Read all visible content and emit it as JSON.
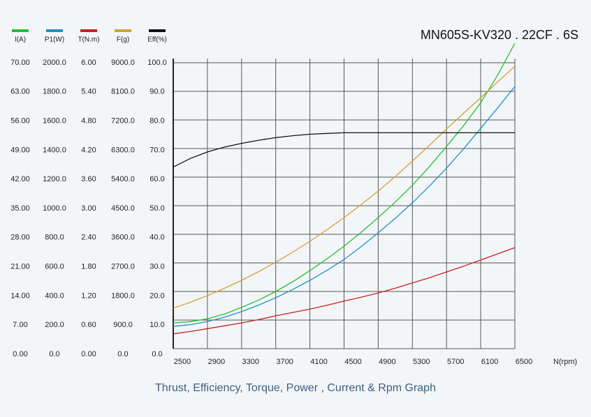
{
  "chart_data": {
    "type": "line",
    "title": "MN605S-KV320 . 22CF . 6S",
    "subtitle": "Thrust, Efficiency, Torque, Power , Current & Rpm Graph",
    "x_label": "N(rpm)",
    "grid": true,
    "x": [
      2500,
      2700,
      2900,
      3100,
      3300,
      3500,
      3700,
      3900,
      4100,
      4300,
      4500,
      4700,
      4900,
      5100,
      5300,
      5500,
      5700,
      5900,
      6100,
      6300,
      6500
    ],
    "xlim": [
      2500,
      6500
    ],
    "xticks": [
      2500,
      2900,
      3300,
      3700,
      4100,
      4500,
      4900,
      5300,
      5700,
      6100,
      6500
    ],
    "series": [
      {
        "name": "I(A)",
        "color": "#22c02c",
        "ylim": [
          0,
          70
        ],
        "yticks": [
          {
            "value": 0,
            "label": "0.00"
          },
          {
            "value": 7,
            "label": "7.00"
          },
          {
            "value": 14,
            "label": "14.00"
          },
          {
            "value": 21,
            "label": "21.00"
          },
          {
            "value": 28,
            "label": "28.00"
          },
          {
            "value": 35,
            "label": "35.00"
          },
          {
            "value": 42,
            "label": "42.00"
          },
          {
            "value": 49,
            "label": "49.00"
          },
          {
            "value": 56,
            "label": "56.00"
          },
          {
            "value": 63,
            "label": "63.00"
          },
          {
            "value": 70,
            "label": "70.00"
          }
        ],
        "values": [
          6.3,
          6.6,
          7.3,
          8.5,
          10.1,
          11.9,
          14.0,
          16.4,
          19.1,
          22.0,
          25.1,
          28.5,
          32.1,
          35.9,
          40.0,
          44.6,
          49.5,
          54.6,
          60.2,
          67.0,
          74.8
        ]
      },
      {
        "name": "P1(W)",
        "color": "#1e90c8",
        "ylim": [
          0,
          2000
        ],
        "yticks": [
          {
            "value": 0,
            "label": "0.0"
          },
          {
            "value": 200,
            "label": "200.0"
          },
          {
            "value": 400,
            "label": "400.0"
          },
          {
            "value": 600,
            "label": "600.0"
          },
          {
            "value": 800,
            "label": "800.0"
          },
          {
            "value": 1000,
            "label": "1000.0"
          },
          {
            "value": 1200,
            "label": "1200.0"
          },
          {
            "value": 1400,
            "label": "1400.0"
          },
          {
            "value": 1600,
            "label": "1600.0"
          },
          {
            "value": 1800,
            "label": "1800.0"
          },
          {
            "value": 2000,
            "label": "2000.0"
          }
        ],
        "values": [
          156,
          168,
          190,
          220,
          259,
          305,
          356,
          414,
          478,
          548,
          624,
          714,
          810,
          912,
          1020,
          1138,
          1263,
          1398,
          1541,
          1685,
          1834
        ]
      },
      {
        "name": "T(N.m)",
        "color": "#c8201e",
        "ylim": [
          0,
          6
        ],
        "yticks": [
          {
            "value": 0,
            "label": "0.00"
          },
          {
            "value": 0.6,
            "label": "0.60"
          },
          {
            "value": 1.2,
            "label": "1.20"
          },
          {
            "value": 1.8,
            "label": "1.80"
          },
          {
            "value": 2.4,
            "label": "2.40"
          },
          {
            "value": 3,
            "label": "3.00"
          },
          {
            "value": 3.6,
            "label": "3.60"
          },
          {
            "value": 4.2,
            "label": "4.20"
          },
          {
            "value": 4.8,
            "label": "4.80"
          },
          {
            "value": 5.4,
            "label": "5.40"
          },
          {
            "value": 6,
            "label": "6.00"
          }
        ],
        "values": [
          0.31,
          0.36,
          0.42,
          0.48,
          0.54,
          0.61,
          0.69,
          0.76,
          0.83,
          0.91,
          1.0,
          1.08,
          1.17,
          1.27,
          1.38,
          1.49,
          1.61,
          1.73,
          1.86,
          1.99,
          2.12
        ]
      },
      {
        "name": "F(g)",
        "color": "#d4a030",
        "ylim": [
          0,
          9000
        ],
        "yticks": [
          {
            "value": 0,
            "label": "0.0"
          },
          {
            "value": 900,
            "label": "900.0"
          },
          {
            "value": 1800,
            "label": "1800.0"
          },
          {
            "value": 2700,
            "label": "2700.0"
          },
          {
            "value": 3600,
            "label": "3600.0"
          },
          {
            "value": 4500,
            "label": "4500.0"
          },
          {
            "value": 5400,
            "label": "5400.0"
          },
          {
            "value": 6300,
            "label": "6300.0"
          },
          {
            "value": 7200,
            "label": "7200.0"
          },
          {
            "value": 8100,
            "label": "8100.0"
          },
          {
            "value": 9000,
            "label": "9000.0"
          }
        ],
        "values": [
          1273,
          1460,
          1668,
          1900,
          2151,
          2425,
          2722,
          3040,
          3380,
          3745,
          4127,
          4535,
          4961,
          5420,
          5905,
          6400,
          6915,
          7410,
          7900,
          8400,
          8890
        ]
      },
      {
        "name": "Eff(%)",
        "color": "#111111",
        "ylim": [
          0,
          100
        ],
        "yticks": [
          {
            "value": 0,
            "label": "0.0"
          },
          {
            "value": 10,
            "label": "10.0"
          },
          {
            "value": 20,
            "label": "20.0"
          },
          {
            "value": 30,
            "label": "30.0"
          },
          {
            "value": 40,
            "label": "40.0"
          },
          {
            "value": 50,
            "label": "50.0"
          },
          {
            "value": 60,
            "label": "60.0"
          },
          {
            "value": 70,
            "label": "70.0"
          },
          {
            "value": 80,
            "label": "80.0"
          },
          {
            "value": 90,
            "label": "90.0"
          },
          {
            "value": 100,
            "label": "100.0"
          }
        ],
        "values": [
          63.5,
          66.5,
          68.8,
          70.5,
          71.8,
          72.9,
          73.8,
          74.5,
          75.0,
          75.3,
          75.5,
          75.5,
          75.5,
          75.5,
          75.5,
          75.5,
          75.5,
          75.5,
          75.5,
          75.5,
          75.5
        ]
      }
    ]
  }
}
